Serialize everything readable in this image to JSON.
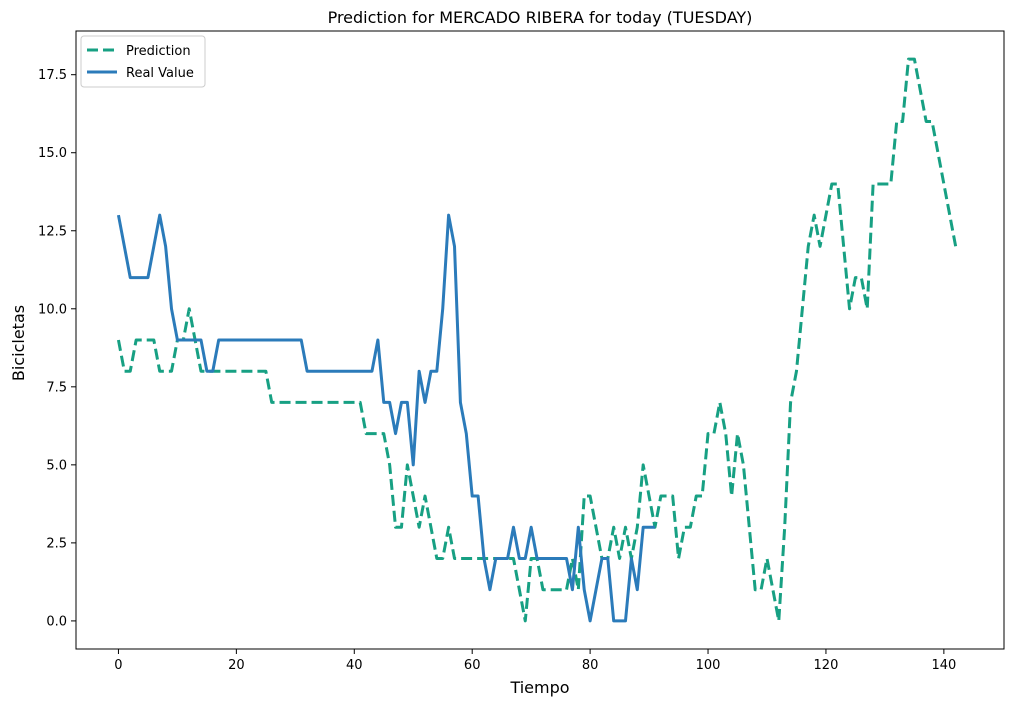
{
  "chart_data": {
    "type": "line",
    "title": "Prediction for MERCADO RIBERA for today (TUESDAY)",
    "xlabel": "Tiempo",
    "ylabel": "Bicicletas",
    "xlim": [
      -7.2,
      150.2
    ],
    "ylim": [
      -0.9,
      18.9
    ],
    "xticks": [
      0,
      20,
      40,
      60,
      80,
      100,
      120,
      140
    ],
    "xtick_labels": [
      "0",
      "20",
      "40",
      "60",
      "80",
      "100",
      "120",
      "140"
    ],
    "yticks": [
      0,
      2.5,
      5,
      7.5,
      10,
      12.5,
      15,
      17.5
    ],
    "ytick_labels": [
      "0.0",
      "2.5",
      "5.0",
      "7.5",
      "10.0",
      "12.5",
      "15.0",
      "17.5"
    ],
    "grid": false,
    "legend_position": "top-left",
    "series": [
      {
        "name": "Prediction",
        "color": "#17a083",
        "style": "dashed",
        "points": [
          [
            0,
            9
          ],
          [
            1,
            8
          ],
          [
            2,
            8
          ],
          [
            3,
            9
          ],
          [
            4,
            9
          ],
          [
            5,
            9
          ],
          [
            6,
            9
          ],
          [
            7,
            8
          ],
          [
            8,
            8
          ],
          [
            9,
            8
          ],
          [
            10,
            9
          ],
          [
            11,
            9
          ],
          [
            12,
            10
          ],
          [
            13,
            9
          ],
          [
            14,
            8
          ],
          [
            15,
            8
          ],
          [
            16,
            8
          ],
          [
            17,
            8
          ],
          [
            18,
            8
          ],
          [
            19,
            8
          ],
          [
            20,
            8
          ],
          [
            21,
            8
          ],
          [
            22,
            8
          ],
          [
            23,
            8
          ],
          [
            24,
            8
          ],
          [
            25,
            8
          ],
          [
            26,
            7
          ],
          [
            27,
            7
          ],
          [
            28,
            7
          ],
          [
            29,
            7
          ],
          [
            30,
            7
          ],
          [
            31,
            7
          ],
          [
            32,
            7
          ],
          [
            33,
            7
          ],
          [
            34,
            7
          ],
          [
            35,
            7
          ],
          [
            36,
            7
          ],
          [
            37,
            7
          ],
          [
            38,
            7
          ],
          [
            39,
            7
          ],
          [
            40,
            7
          ],
          [
            41,
            7
          ],
          [
            42,
            6
          ],
          [
            43,
            6
          ],
          [
            44,
            6
          ],
          [
            45,
            6
          ],
          [
            46,
            5
          ],
          [
            47,
            3
          ],
          [
            48,
            3
          ],
          [
            49,
            5
          ],
          [
            50,
            4
          ],
          [
            51,
            3
          ],
          [
            52,
            4
          ],
          [
            53,
            3
          ],
          [
            54,
            2
          ],
          [
            55,
            2
          ],
          [
            56,
            3
          ],
          [
            57,
            2
          ],
          [
            58,
            2
          ],
          [
            59,
            2
          ],
          [
            60,
            2
          ],
          [
            61,
            2
          ],
          [
            62,
            2
          ],
          [
            63,
            2
          ],
          [
            64,
            2
          ],
          [
            65,
            2
          ],
          [
            66,
            2
          ],
          [
            67,
            2
          ],
          [
            68,
            1
          ],
          [
            69,
            0
          ],
          [
            70,
            2
          ],
          [
            71,
            2
          ],
          [
            72,
            1
          ],
          [
            73,
            1
          ],
          [
            74,
            1
          ],
          [
            75,
            1
          ],
          [
            76,
            1
          ],
          [
            77,
            2
          ],
          [
            78,
            1
          ],
          [
            79,
            4
          ],
          [
            80,
            4
          ],
          [
            81,
            3
          ],
          [
            82,
            2
          ],
          [
            83,
            2
          ],
          [
            84,
            3
          ],
          [
            85,
            2
          ],
          [
            86,
            3
          ],
          [
            87,
            2
          ],
          [
            88,
            3
          ],
          [
            89,
            5
          ],
          [
            90,
            4
          ],
          [
            91,
            3
          ],
          [
            92,
            4
          ],
          [
            93,
            4
          ],
          [
            94,
            4
          ],
          [
            95,
            2
          ],
          [
            96,
            3
          ],
          [
            97,
            3
          ],
          [
            98,
            4
          ],
          [
            99,
            4
          ],
          [
            100,
            6
          ],
          [
            101,
            6
          ],
          [
            102,
            7
          ],
          [
            103,
            6
          ],
          [
            104,
            4
          ],
          [
            105,
            6
          ],
          [
            106,
            5
          ],
          [
            107,
            3
          ],
          [
            108,
            1
          ],
          [
            109,
            1
          ],
          [
            110,
            2
          ],
          [
            111,
            1
          ],
          [
            112,
            0
          ],
          [
            113,
            3
          ],
          [
            114,
            7
          ],
          [
            115,
            8
          ],
          [
            116,
            10
          ],
          [
            117,
            12
          ],
          [
            118,
            13
          ],
          [
            119,
            12
          ],
          [
            120,
            13
          ],
          [
            121,
            14
          ],
          [
            122,
            14
          ],
          [
            123,
            12
          ],
          [
            124,
            10
          ],
          [
            125,
            11
          ],
          [
            126,
            11
          ],
          [
            127,
            10
          ],
          [
            128,
            14
          ],
          [
            129,
            14
          ],
          [
            130,
            14
          ],
          [
            131,
            14
          ],
          [
            132,
            16
          ],
          [
            133,
            16
          ],
          [
            134,
            18
          ],
          [
            135,
            18
          ],
          [
            136,
            17
          ],
          [
            137,
            16
          ],
          [
            138,
            16
          ],
          [
            139,
            15
          ],
          [
            140,
            14
          ],
          [
            141,
            13
          ],
          [
            142,
            12
          ]
        ]
      },
      {
        "name": "Real Value",
        "color": "#2b7bba",
        "style": "solid",
        "points": [
          [
            0,
            13
          ],
          [
            1,
            12
          ],
          [
            2,
            11
          ],
          [
            3,
            11
          ],
          [
            4,
            11
          ],
          [
            5,
            11
          ],
          [
            6,
            12
          ],
          [
            7,
            13
          ],
          [
            8,
            12
          ],
          [
            9,
            10
          ],
          [
            10,
            9
          ],
          [
            11,
            9
          ],
          [
            12,
            9
          ],
          [
            13,
            9
          ],
          [
            14,
            9
          ],
          [
            15,
            8
          ],
          [
            16,
            8
          ],
          [
            17,
            9
          ],
          [
            18,
            9
          ],
          [
            19,
            9
          ],
          [
            20,
            9
          ],
          [
            21,
            9
          ],
          [
            22,
            9
          ],
          [
            23,
            9
          ],
          [
            24,
            9
          ],
          [
            25,
            9
          ],
          [
            26,
            9
          ],
          [
            27,
            9
          ],
          [
            28,
            9
          ],
          [
            29,
            9
          ],
          [
            30,
            9
          ],
          [
            31,
            9
          ],
          [
            32,
            8
          ],
          [
            33,
            8
          ],
          [
            34,
            8
          ],
          [
            35,
            8
          ],
          [
            36,
            8
          ],
          [
            37,
            8
          ],
          [
            38,
            8
          ],
          [
            39,
            8
          ],
          [
            40,
            8
          ],
          [
            41,
            8
          ],
          [
            42,
            8
          ],
          [
            43,
            8
          ],
          [
            44,
            9
          ],
          [
            45,
            7
          ],
          [
            46,
            7
          ],
          [
            47,
            6
          ],
          [
            48,
            7
          ],
          [
            49,
            7
          ],
          [
            50,
            5
          ],
          [
            51,
            8
          ],
          [
            52,
            7
          ],
          [
            53,
            8
          ],
          [
            54,
            8
          ],
          [
            55,
            10
          ],
          [
            56,
            13
          ],
          [
            57,
            12
          ],
          [
            58,
            7
          ],
          [
            59,
            6
          ],
          [
            60,
            4
          ],
          [
            61,
            4
          ],
          [
            62,
            2
          ],
          [
            63,
            1
          ],
          [
            64,
            2
          ],
          [
            65,
            2
          ],
          [
            66,
            2
          ],
          [
            67,
            3
          ],
          [
            68,
            2
          ],
          [
            69,
            2
          ],
          [
            70,
            3
          ],
          [
            71,
            2
          ],
          [
            72,
            2
          ],
          [
            73,
            2
          ],
          [
            74,
            2
          ],
          [
            75,
            2
          ],
          [
            76,
            2
          ],
          [
            77,
            1
          ],
          [
            78,
            3
          ],
          [
            79,
            1
          ],
          [
            80,
            0
          ],
          [
            81,
            1
          ],
          [
            82,
            2
          ],
          [
            83,
            2
          ],
          [
            84,
            0
          ],
          [
            85,
            0
          ],
          [
            86,
            0
          ],
          [
            87,
            2
          ],
          [
            88,
            1
          ],
          [
            89,
            3
          ],
          [
            90,
            3
          ],
          [
            91,
            3
          ]
        ]
      }
    ]
  }
}
